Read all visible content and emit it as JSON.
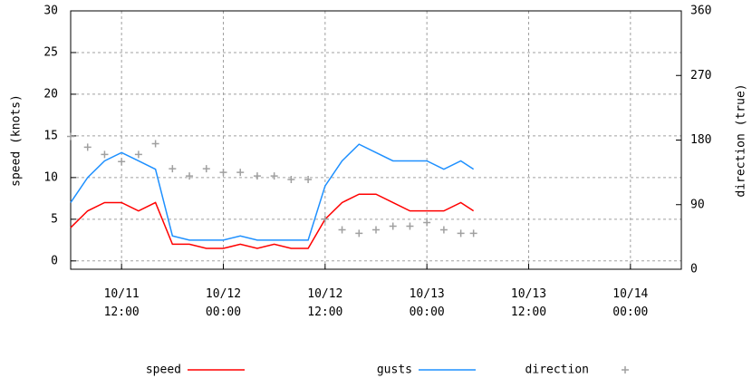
{
  "chart_data": {
    "type": "line",
    "y_label": "speed (knots)",
    "y2_label": "direction (true)",
    "x": [
      "10/11 06:00",
      "10/11 08:00",
      "10/11 10:00",
      "10/11 12:00",
      "10/11 14:00",
      "10/11 16:00",
      "10/11 18:00",
      "10/11 20:00",
      "10/11 22:00",
      "10/12 00:00",
      "10/12 02:00",
      "10/12 04:00",
      "10/12 06:00",
      "10/12 08:00",
      "10/12 10:00",
      "10/12 12:00",
      "10/12 14:00",
      "10/12 16:00",
      "10/12 18:00",
      "10/12 20:00",
      "10/12 22:00",
      "10/13 00:00",
      "10/13 02:00",
      "10/13 04:00",
      "10/13 05:30"
    ],
    "series": [
      {
        "name": "speed",
        "type": "line",
        "color": "#ff0000",
        "values": [
          4,
          6,
          7,
          7,
          6,
          7,
          2,
          2,
          1.5,
          1.5,
          2,
          1.5,
          2,
          1.5,
          1.5,
          5,
          7,
          8,
          8,
          7,
          6,
          6,
          6,
          7,
          6
        ]
      },
      {
        "name": "gusts",
        "type": "line",
        "color": "#1e90ff",
        "values": [
          7,
          10,
          12,
          13,
          12,
          11,
          3,
          2.5,
          2.5,
          2.5,
          3,
          2.5,
          2.5,
          2.5,
          2.5,
          9,
          12,
          14,
          13,
          12,
          12,
          12,
          11,
          12,
          11
        ]
      },
      {
        "name": "direction",
        "type": "scatter",
        "axis": "y2",
        "color": "#a0a0a0",
        "values": [
          185,
          170,
          160,
          150,
          160,
          175,
          140,
          130,
          140,
          135,
          135,
          130,
          130,
          125,
          125,
          70,
          55,
          50,
          55,
          60,
          60,
          65,
          55,
          50,
          50
        ]
      }
    ],
    "xlim": [
      "10/11 06:00",
      "10/14 06:00"
    ],
    "xticks": [
      "10/11 12:00",
      "10/12 00:00",
      "10/12 12:00",
      "10/13 00:00",
      "10/13 12:00",
      "10/14 00:00"
    ],
    "ylim": [
      -1,
      30
    ],
    "yticks": [
      0,
      5,
      10,
      15,
      20,
      25,
      30
    ],
    "y2lim": [
      0,
      360
    ],
    "y2ticks": [
      0,
      90,
      180,
      270,
      360
    ],
    "grid": true
  }
}
